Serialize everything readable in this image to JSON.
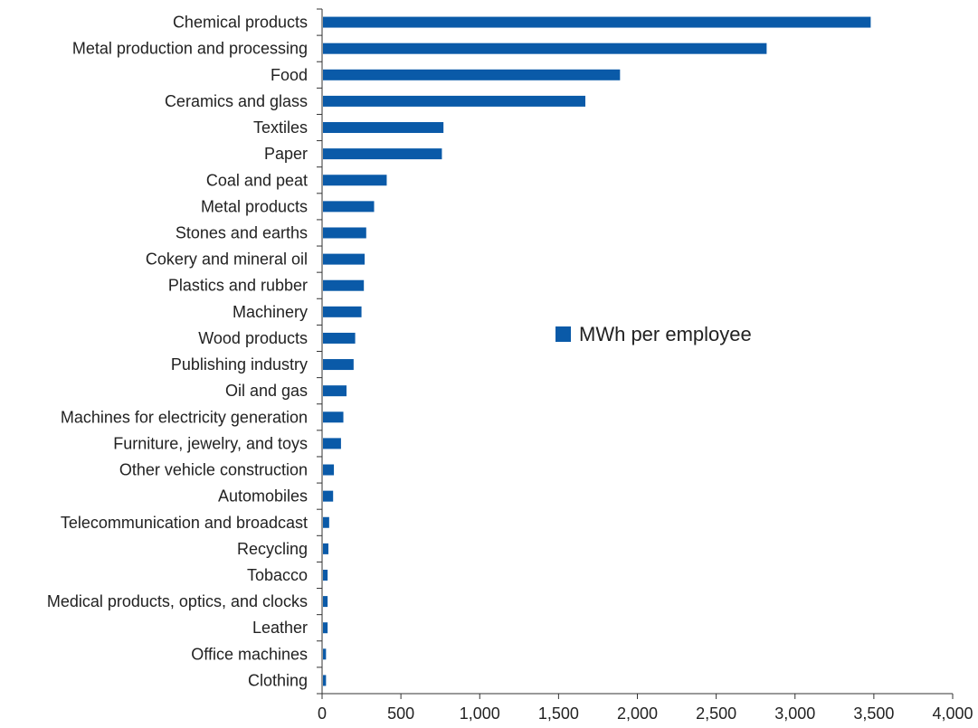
{
  "chart_data": {
    "type": "bar",
    "orientation": "horizontal",
    "title": "",
    "xlabel": "",
    "ylabel": "",
    "categories": [
      "Chemical products",
      "Metal production and processing",
      "Food",
      "Ceramics and glass",
      "Textiles",
      "Paper",
      "Coal and peat",
      "Metal products",
      "Stones and earths",
      "Cokery and mineral oil",
      "Plastics and rubber",
      "Machinery",
      "Wood products",
      "Publishing industry",
      "Oil and gas",
      "Machines for electricity generation",
      "Furniture, jewelry, and toys",
      "Other vehicle construction",
      "Automobiles",
      "Telecommunication and broadcast",
      "Recycling",
      "Tobacco",
      "Medical products, optics, and clocks",
      "Leather",
      "Office machines",
      "Clothing"
    ],
    "series": [
      {
        "name": "MWh per employee",
        "color": "#0a5aa8",
        "values": [
          3480,
          2820,
          1890,
          1670,
          770,
          760,
          410,
          330,
          280,
          270,
          265,
          250,
          210,
          200,
          155,
          135,
          120,
          75,
          70,
          45,
          40,
          35,
          35,
          35,
          25,
          25
        ]
      }
    ],
    "xlim": [
      0,
      4000
    ],
    "xticks": [
      0,
      500,
      1000,
      1500,
      2000,
      2500,
      3000,
      3500,
      4000
    ],
    "xtick_labels": [
      "0",
      "500",
      "1,000",
      "1,500",
      "2,000",
      "2,500",
      "3,000",
      "3,500",
      "4,000"
    ],
    "grid": false,
    "legend": {
      "position": "center-right"
    }
  }
}
